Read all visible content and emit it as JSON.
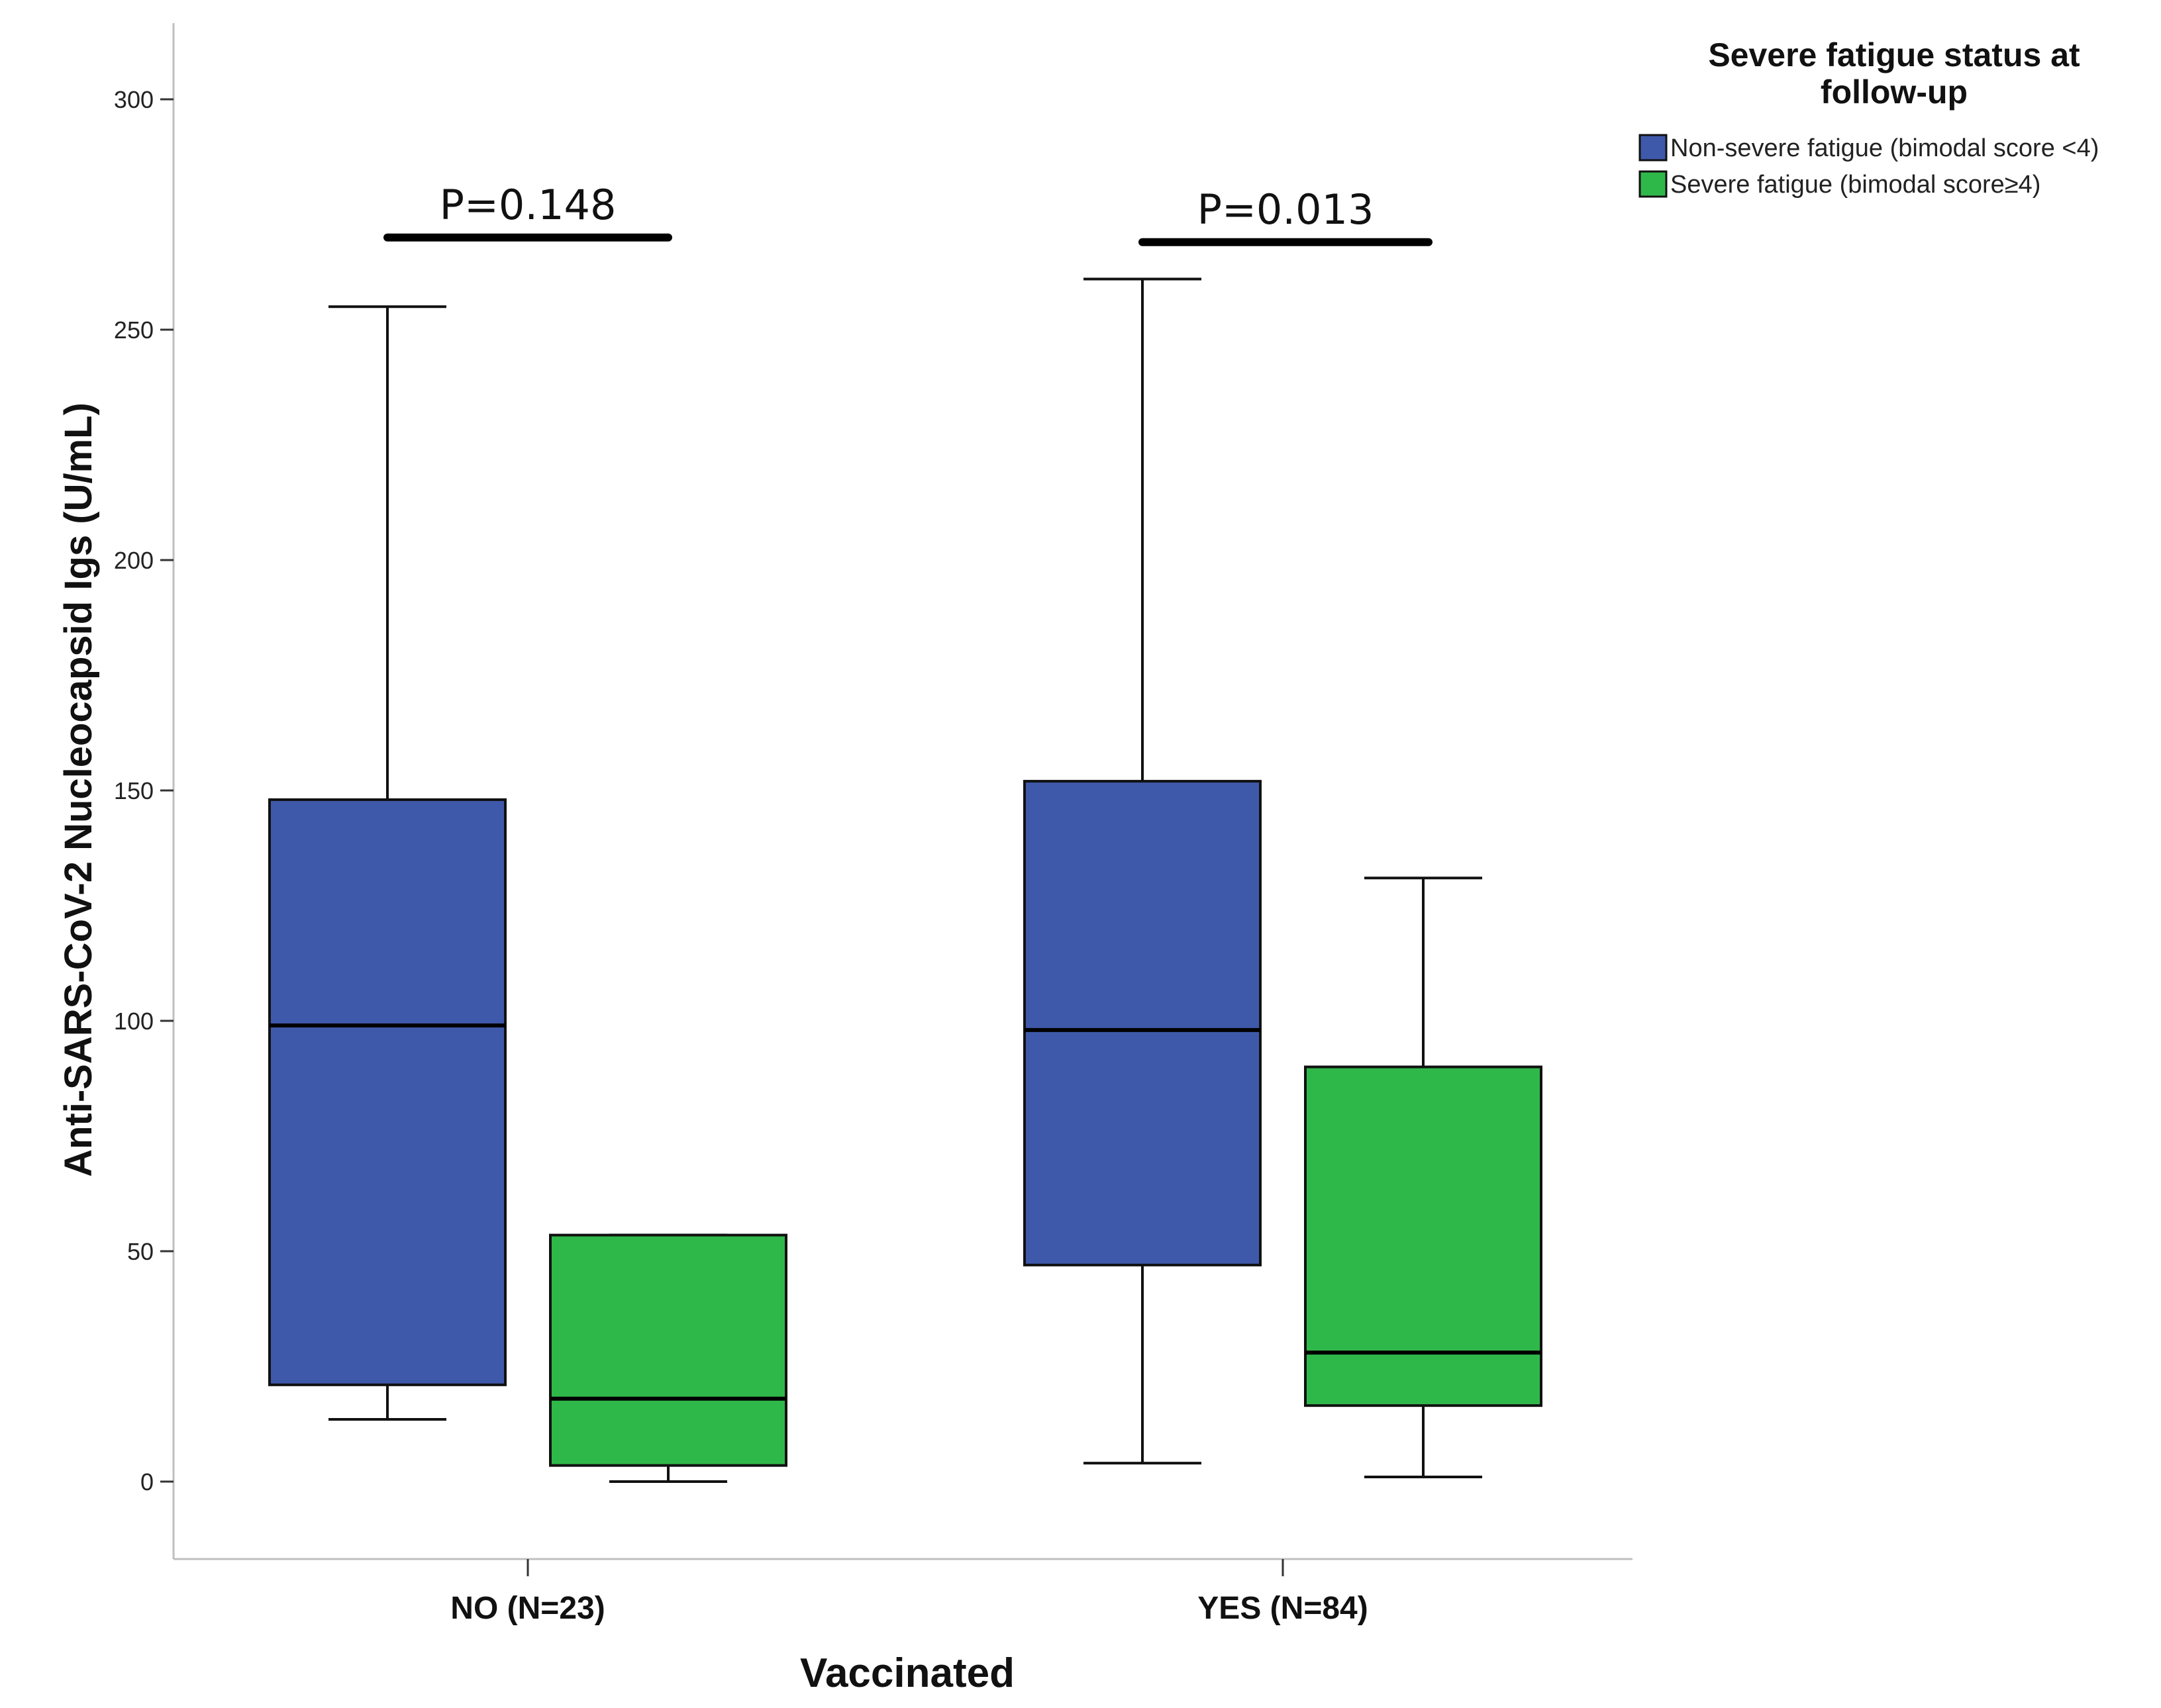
{
  "chart_data": {
    "type": "boxplot",
    "xlabel": "Vaccinated",
    "ylabel": "Anti-SARS-CoV-2 Nucleocapsid Igs (U/mL)",
    "ylim": [
      -15,
      318
    ],
    "yticks": [
      0,
      50,
      100,
      150,
      200,
      250,
      300
    ],
    "ytick_labels": [
      "0",
      "50",
      "100",
      "150",
      "200",
      "250",
      "300"
    ],
    "categories": [
      "NO (N=23)",
      "YES (N=84)"
    ],
    "legend": {
      "title": "Severe fatigue status at follow-up",
      "position": "top-right",
      "entries": [
        {
          "label": "Non-severe fatigue (bimodal score <4)",
          "color": "#3f59aa"
        },
        {
          "label": "Severe fatigue (bimodal score≥4)",
          "color": "#2fb84a"
        }
      ]
    },
    "series": [
      {
        "name": "Non-severe fatigue (bimodal score <4)",
        "color": "#3f59aa",
        "boxes": [
          {
            "category": "NO (N=23)",
            "min": 13.5,
            "q1": 21,
            "median": 99,
            "q3": 148,
            "max": 255
          },
          {
            "category": "YES (N=84)",
            "min": 4,
            "q1": 47,
            "median": 98,
            "q3": 152,
            "max": 261
          }
        ]
      },
      {
        "name": "Severe fatigue (bimodal score≥4)",
        "color": "#2fb84a",
        "boxes": [
          {
            "category": "NO (N=23)",
            "min": 0,
            "q1": 3.5,
            "median": 18,
            "q3": 53.5,
            "max": 53.5
          },
          {
            "category": "YES (N=84)",
            "min": 1,
            "q1": 16.5,
            "median": 28,
            "q3": 90,
            "max": 131
          }
        ]
      }
    ],
    "annotations": [
      {
        "category": "NO (N=23)",
        "text": "P=0.148",
        "bar_y": 270
      },
      {
        "category": "YES (N=84)",
        "text": "P=0.013",
        "bar_y": 269
      }
    ]
  }
}
